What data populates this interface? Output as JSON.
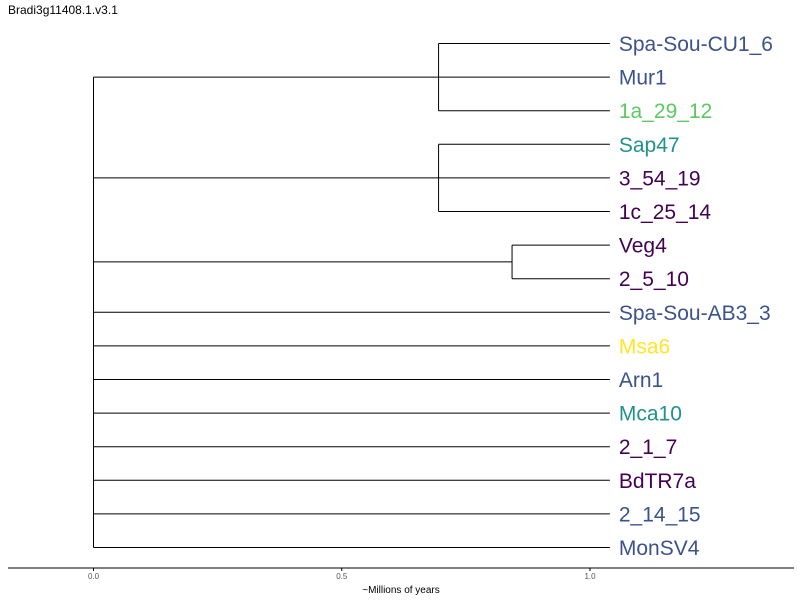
{
  "title": "Bradi3g11408.1.v3.1",
  "xlabel": "~Millions of years",
  "ticks": [
    "0.0",
    "0.5",
    "1.0"
  ],
  "tree": {
    "root_age": 0.0,
    "leaf_age": 1.04,
    "leaves": [
      {
        "name": "Spa-Sou-CU1_6",
        "color": "#3b528b"
      },
      {
        "name": "Mur1",
        "color": "#3b528b"
      },
      {
        "name": "1a_29_12",
        "color": "#5ec962"
      },
      {
        "name": "Sap47",
        "color": "#21918c"
      },
      {
        "name": "3_54_19",
        "color": "#440154"
      },
      {
        "name": "1c_25_14",
        "color": "#440154"
      },
      {
        "name": "Veg4",
        "color": "#440154"
      },
      {
        "name": "2_5_10",
        "color": "#440154"
      },
      {
        "name": "Spa-Sou-AB3_3",
        "color": "#3b528b"
      },
      {
        "name": "Msa6",
        "color": "#fde725"
      },
      {
        "name": "Arn1",
        "color": "#3b528b"
      },
      {
        "name": "Mca10",
        "color": "#21918c"
      },
      {
        "name": "2_1_7",
        "color": "#440154"
      },
      {
        "name": "BdTR7a",
        "color": "#440154"
      },
      {
        "name": "2_14_15",
        "color": "#3b528b"
      },
      {
        "name": "MonSV4",
        "color": "#3b528b"
      }
    ],
    "clades": [
      {
        "name": "clade-a",
        "node_age": 0.695,
        "members": [
          0,
          1,
          2
        ]
      },
      {
        "name": "clade-b",
        "node_age": 0.695,
        "members": [
          3,
          4,
          5
        ]
      },
      {
        "name": "clade-c",
        "node_age": 0.843,
        "members": [
          6,
          7
        ]
      },
      {
        "name": "single-8",
        "node_age": null,
        "members": [
          8
        ]
      },
      {
        "name": "single-9",
        "node_age": null,
        "members": [
          9
        ]
      },
      {
        "name": "single-10",
        "node_age": null,
        "members": [
          10
        ]
      },
      {
        "name": "single-11",
        "node_age": null,
        "members": [
          11
        ]
      },
      {
        "name": "single-12",
        "node_age": null,
        "members": [
          12
        ]
      },
      {
        "name": "single-13",
        "node_age": null,
        "members": [
          13
        ]
      },
      {
        "name": "single-14",
        "node_age": null,
        "members": [
          14
        ]
      },
      {
        "name": "single-15",
        "node_age": null,
        "members": [
          15
        ]
      }
    ]
  }
}
